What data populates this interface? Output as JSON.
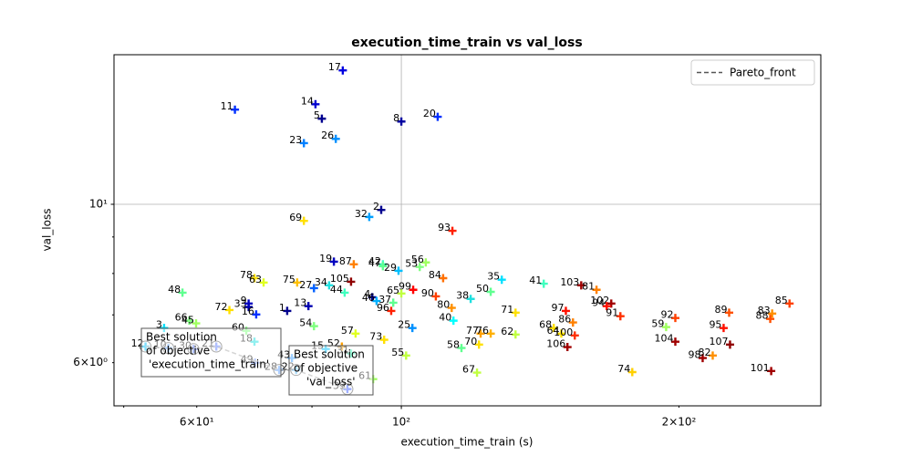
{
  "chart_data": {
    "type": "scatter",
    "title": "execution_time_train vs val_loss",
    "xlabel": "execution_time_train (s)",
    "ylabel": "val_loss",
    "xscale": "log",
    "yscale": "log",
    "xlim": [
      48.8,
      285
    ],
    "ylim": [
      5.22,
      16.2
    ],
    "xticks": [
      {
        "value": 60,
        "label": "6×10¹"
      },
      {
        "value": 100,
        "label": "10²"
      },
      {
        "value": 200,
        "label": "2×10²"
      }
    ],
    "yticks": [
      {
        "value": 6,
        "label": "6×10⁰"
      },
      {
        "value": 10,
        "label": "10¹"
      }
    ],
    "xminorticks": [
      50,
      70,
      80,
      90
    ],
    "yminorticks": [
      7,
      8,
      9
    ],
    "grid": true,
    "legend_loc": "upper right",
    "labels": [
      "17",
      "14",
      "11",
      "5",
      "8",
      "20",
      "26",
      "23",
      "2",
      "32",
      "69",
      "93",
      "19",
      "87",
      "42",
      "47",
      "29",
      "53",
      "56",
      "48",
      "78",
      "63",
      "75",
      "27",
      "34",
      "105",
      "44",
      "84",
      "35",
      "41",
      "103",
      "81",
      "99",
      "65",
      "90",
      "38",
      "50",
      "102",
      "94",
      "91",
      "4",
      "46",
      "37",
      "96",
      "80",
      "40",
      "71",
      "97",
      "86",
      "13",
      "1",
      "33",
      "9",
      "16",
      "72",
      "66",
      "45",
      "3",
      "54",
      "57",
      "25",
      "77",
      "76",
      "62",
      "68",
      "64",
      "100",
      "106",
      "59",
      "92",
      "89",
      "83",
      "88",
      "85",
      "95",
      "104",
      "107",
      "98",
      "82",
      "101",
      "74",
      "73",
      "55",
      "58",
      "70",
      "67",
      "60",
      "18",
      "61",
      "15",
      "52",
      "31",
      "43",
      "22",
      "12",
      "10",
      "30",
      "21",
      "49",
      "28",
      "39"
    ],
    "x": [
      86.4,
      80.7,
      66.0,
      82.0,
      100,
      109.5,
      84.9,
      78.4,
      95.1,
      92.3,
      78.4,
      113.6,
      84.5,
      88.8,
      95.5,
      95.5,
      99.3,
      104.7,
      106.3,
      57.9,
      69.3,
      70.9,
      77.1,
      80.4,
      83.5,
      88.2,
      86.8,
      111.0,
      128.5,
      142.7,
      156.7,
      162.8,
      103.0,
      100,
      109.0,
      118.9,
      125.0,
      168.9,
      167.0,
      172.8,
      93.0,
      94.0,
      98.0,
      97.5,
      113.4,
      113.9,
      133.0,
      150.8,
      153.5,
      79.3,
      75.2,
      68.3,
      68.3,
      69.6,
      65.1,
      58.9,
      59.9,
      55.3,
      80.4,
      89.2,
      102.8,
      121.9,
      125.0,
      133.0,
      146.3,
      149.1,
      154.2,
      151.4,
      193.7,
      198.2,
      226.7,
      252.4,
      251.2,
      263.6,
      223.6,
      198.2,
      227.2,
      212.2,
      217.6,
      251.8,
      178.0,
      95.8,
      101.2,
      116.2,
      121.4,
      120.8,
      67.9,
      69.3,
      93.2,
      82.8,
      86.2,
      88.2,
      76.1,
      76.9,
      52.8,
      55.9,
      59.5,
      63.0,
      69.4,
      73.7,
      87.4
    ],
    "values": [
      15.4,
      13.81,
      13.57,
      13.18,
      13.06,
      13.26,
      12.35,
      12.18,
      9.82,
      9.6,
      9.48,
      9.18,
      8.31,
      8.24,
      8.24,
      8.19,
      8.07,
      8.17,
      8.29,
      7.52,
      7.88,
      7.77,
      7.77,
      7.63,
      7.7,
      7.79,
      7.52,
      7.88,
      7.84,
      7.74,
      7.7,
      7.59,
      7.59,
      7.5,
      7.43,
      7.37,
      7.54,
      7.26,
      7.2,
      6.97,
      7.41,
      7.32,
      7.28,
      7.09,
      7.16,
      6.87,
      7.05,
      7.09,
      6.83,
      7.2,
      7.09,
      7.18,
      7.26,
      7.01,
      7.11,
      6.87,
      6.81,
      6.71,
      6.75,
      6.59,
      6.71,
      6.59,
      6.59,
      6.57,
      6.71,
      6.59,
      6.55,
      6.31,
      6.73,
      6.93,
      7.05,
      7.03,
      6.91,
      7.26,
      6.71,
      6.42,
      6.36,
      6.09,
      6.14,
      5.84,
      5.82,
      6.46,
      6.14,
      6.29,
      6.36,
      5.81,
      6.65,
      6.42,
      5.69,
      6.27,
      6.32,
      6.18,
      6.09,
      5.86,
      6.32,
      6.29,
      6.27,
      6.32,
      6.0,
      5.86,
      5.51
    ],
    "colors": [
      "#0000e0",
      "#0000d0",
      "#0030ff",
      "#00008f",
      "#0000a0",
      "#0030ff",
      "#0090ff",
      "#0080ff",
      "#00008f",
      "#00a0ff",
      "#ffe000",
      "#ff2000",
      "#0000c0",
      "#ff8000",
      "#40ffbf",
      "#60ff90",
      "#00c0ff",
      "#80ff80",
      "#a0ff60",
      "#60ff90",
      "#ffe000",
      "#e0ff20",
      "#ffc000",
      "#0060ff",
      "#20e0e0",
      "#900000",
      "#40ffbf",
      "#ff7000",
      "#00e0ff",
      "#40ffbf",
      "#a00000",
      "#ff8000",
      "#ff0000",
      "#c0ff40",
      "#ff4000",
      "#20e0e0",
      "#60ff90",
      "#a00000",
      "#ff1000",
      "#ff3000",
      "#00008f",
      "#00b0ff",
      "#60ff90",
      "#ff2000",
      "#ff9000",
      "#00ffff",
      "#ffe000",
      "#ff1000",
      "#ff8000",
      "#0000b0",
      "#00008f",
      "#0000a0",
      "#0000c0",
      "#0030ff",
      "#ffe000",
      "#80ff80",
      "#a0ff60",
      "#00e0ff",
      "#80ff80",
      "#e0ff20",
      "#0090ff",
      "#ffa000",
      "#ffb000",
      "#c0ff40",
      "#ffe000",
      "#ffe000",
      "#ff3000",
      "#a00000",
      "#a0ff60",
      "#ff4000",
      "#ff5000",
      "#ff9000",
      "#ff5000",
      "#ff4000",
      "#ff1000",
      "#a00000",
      "#900000",
      "#a00000",
      "#ff9000",
      "#a00000",
      "#ffd000",
      "#ffe000",
      "#c0ff40",
      "#60ff90",
      "#ffe000",
      "#c0ff40",
      "#80ff80",
      "#20e0e0",
      "#a0ff60",
      "#00c0ff",
      "#ffa000",
      "#40ffbf",
      "#40a0ff",
      "#60c0ff",
      "#00c0ff",
      "#60a0ff",
      "#6080ff",
      "#6080ff",
      "#80a0ff",
      "#60a0ff",
      "#4060ff"
    ],
    "pareto_front": {
      "name": "Pareto_front",
      "color": "#555555",
      "x": [
        52.8,
        55.9,
        59.5,
        63.0,
        73.7,
        76.9,
        87.4
      ],
      "values": [
        6.32,
        6.29,
        6.27,
        6.32,
        5.86,
        5.86,
        5.51
      ]
    },
    "annotations": [
      {
        "lines": [
          "Best solution",
          "of objective",
          "'execution_time_train'"
        ]
      },
      {
        "lines": [
          "Best solution",
          "of objective",
          "'val_loss'"
        ]
      }
    ]
  }
}
